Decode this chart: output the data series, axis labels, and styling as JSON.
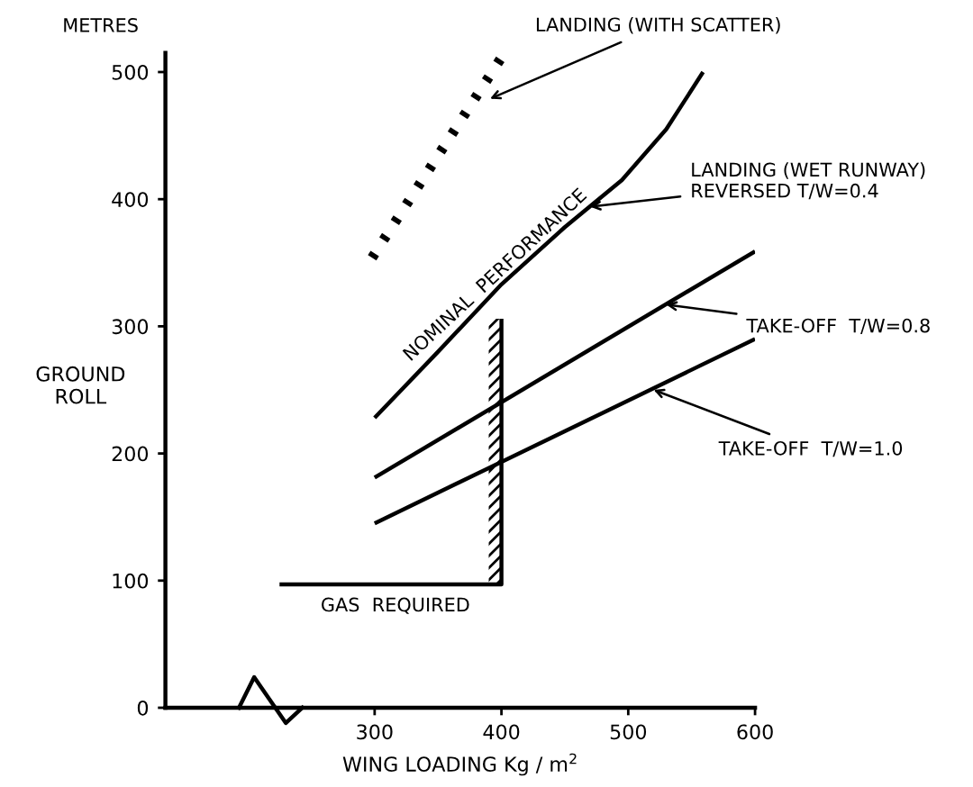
{
  "chart_data": {
    "type": "line",
    "xlabel": "WING LOADING Kg / m$^{2}$",
    "ylabel": "GROUND\nROLL",
    "xlim": [
      135,
      600
    ],
    "ylim": [
      0,
      515
    ],
    "xticks": [
      300,
      400,
      500,
      600
    ],
    "yticks": [
      0,
      100,
      200,
      300,
      400,
      500
    ],
    "grid": false,
    "legend": false,
    "marker": "none",
    "series": [
      {
        "x": [
          300,
          350,
          400,
          450,
          495,
          530,
          559
        ],
        "values": [
          228,
          280,
          333,
          378,
          415,
          455,
          500
        ],
        "color": "#000000",
        "line_style": "solid"
      },
      {
        "x": [
          300,
          600
        ],
        "values": [
          181,
          359
        ],
        "color": "#000000",
        "line_style": "solid"
      },
      {
        "x": [
          300,
          600
        ],
        "values": [
          145,
          290
        ],
        "color": "#000000",
        "line_style": "solid"
      },
      {
        "x": [
          298,
          401
        ],
        "values": [
          354,
          513
        ],
        "color": "#000000",
        "line_style": "dashed"
      },
      {
        "x": [
          225,
          400,
          400
        ],
        "values": [
          97,
          97,
          306
        ],
        "color": "#000000",
        "line_style": "solid"
      }
    ],
    "annotations": [
      {
        "text": "LANDING (WITH SCATTER)",
        "x": 391,
        "y": 479
      },
      {
        "text": "LANDING (WET RUNWAY)\nREVERSED T/W=0.4",
        "x": 470,
        "y": 394
      },
      {
        "text": "TAKE-OFF  T/W=0.8",
        "x": 530,
        "y": 317
      },
      {
        "text": "TAKE-OFF  T/W=1.0",
        "x": 520,
        "y": 250
      },
      "NOMINAL  PERFORMANCE",
      "GAS  REQUIRED",
      "METRES"
    ]
  }
}
